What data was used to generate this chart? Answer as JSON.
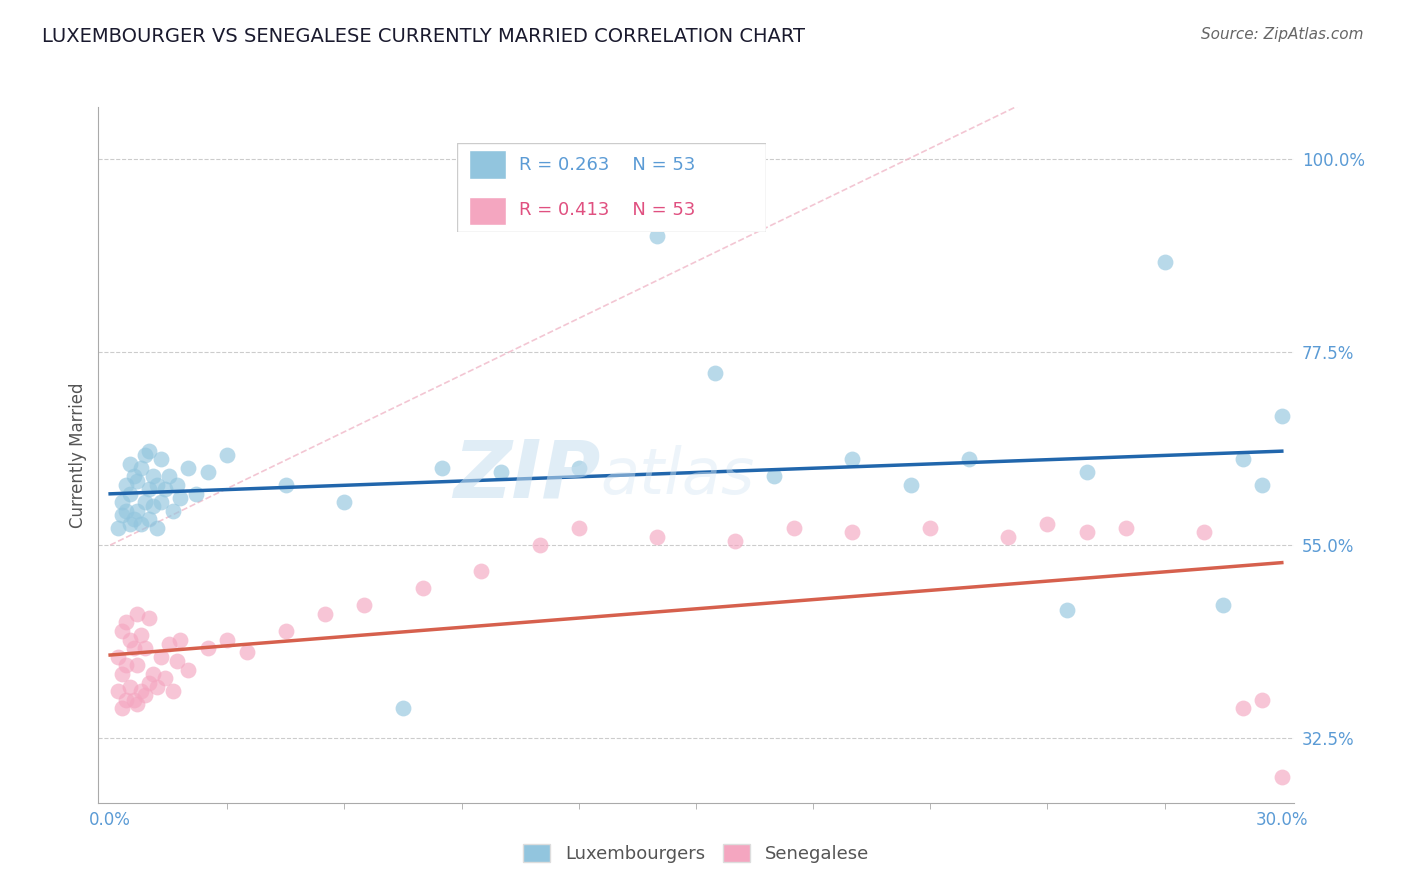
{
  "title": "LUXEMBOURGER VS SENEGALESE CURRENTLY MARRIED CORRELATION CHART",
  "source_text": "Source: ZipAtlas.com",
  "ylabel": "Currently Married",
  "xlim": [
    -0.3,
    30.3
  ],
  "ylim": [
    25.0,
    106.0
  ],
  "ytick_vals": [
    32.5,
    55.0,
    77.5,
    100.0
  ],
  "xtick_vals": [
    0.0,
    30.0
  ],
  "legend_R1": "R = 0.263",
  "legend_N1": "N = 53",
  "legend_R2": "R = 0.413",
  "legend_N2": "N = 53",
  "blue_color": "#92c5de",
  "pink_color": "#f4a6c0",
  "blue_line_color": "#2166ac",
  "pink_line_color": "#d6604d",
  "ref_line_color": "#f4a6c0",
  "watermark_zip": "ZIP",
  "watermark_atlas": "atlas",
  "lux_x": [
    0.2,
    0.3,
    0.3,
    0.4,
    0.4,
    0.5,
    0.5,
    0.5,
    0.6,
    0.6,
    0.7,
    0.7,
    0.8,
    0.8,
    0.9,
    0.9,
    1.0,
    1.0,
    1.0,
    1.1,
    1.1,
    1.2,
    1.2,
    1.3,
    1.3,
    1.4,
    1.5,
    1.6,
    1.7,
    1.8,
    2.0,
    2.2,
    2.5,
    3.0,
    4.5,
    6.0,
    7.5,
    8.5,
    10.0,
    12.0,
    14.0,
    15.5,
    17.0,
    19.0,
    20.5,
    22.0,
    24.5,
    25.0,
    27.0,
    28.5,
    29.0,
    29.5,
    30.0
  ],
  "lux_y": [
    57.0,
    58.5,
    60.0,
    59.0,
    62.0,
    57.5,
    61.0,
    64.5,
    58.0,
    63.0,
    59.0,
    62.5,
    57.5,
    64.0,
    60.0,
    65.5,
    58.0,
    61.5,
    66.0,
    59.5,
    63.0,
    57.0,
    62.0,
    60.0,
    65.0,
    61.5,
    63.0,
    59.0,
    62.0,
    60.5,
    64.0,
    61.0,
    63.5,
    65.5,
    62.0,
    60.0,
    36.0,
    64.0,
    63.5,
    64.0,
    91.0,
    75.0,
    63.0,
    65.0,
    62.0,
    65.0,
    47.5,
    63.5,
    88.0,
    48.0,
    65.0,
    62.0,
    70.0
  ],
  "sen_x": [
    0.2,
    0.2,
    0.3,
    0.3,
    0.3,
    0.4,
    0.4,
    0.4,
    0.5,
    0.5,
    0.6,
    0.6,
    0.7,
    0.7,
    0.7,
    0.8,
    0.8,
    0.9,
    0.9,
    1.0,
    1.0,
    1.1,
    1.2,
    1.3,
    1.4,
    1.5,
    1.6,
    1.7,
    1.8,
    2.0,
    2.5,
    3.0,
    3.5,
    4.5,
    5.5,
    6.5,
    8.0,
    9.5,
    11.0,
    12.0,
    14.0,
    16.0,
    17.5,
    19.0,
    21.0,
    23.0,
    24.0,
    25.0,
    26.0,
    28.0,
    29.0,
    29.5,
    30.0
  ],
  "sen_y": [
    38.0,
    42.0,
    36.0,
    40.0,
    45.0,
    37.0,
    41.0,
    46.0,
    38.5,
    44.0,
    37.0,
    43.0,
    36.5,
    41.0,
    47.0,
    38.0,
    44.5,
    37.5,
    43.0,
    39.0,
    46.5,
    40.0,
    38.5,
    42.0,
    39.5,
    43.5,
    38.0,
    41.5,
    44.0,
    40.5,
    43.0,
    44.0,
    42.5,
    45.0,
    47.0,
    48.0,
    50.0,
    52.0,
    55.0,
    57.0,
    56.0,
    55.5,
    57.0,
    56.5,
    57.0,
    56.0,
    57.5,
    56.5,
    57.0,
    56.5,
    36.0,
    37.0,
    28.0
  ]
}
